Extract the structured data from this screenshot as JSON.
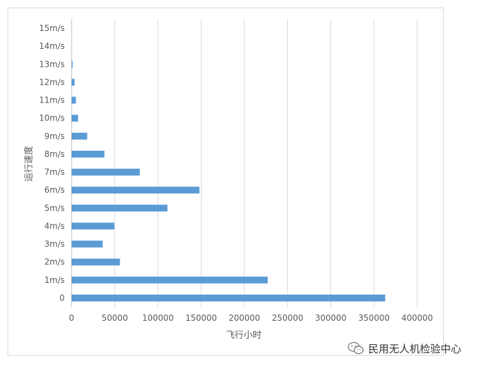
{
  "chart_data": {
    "type": "bar",
    "orientation": "horizontal",
    "categories": [
      "0",
      "1m/s",
      "2m/s",
      "3m/s",
      "4m/s",
      "5m/s",
      "6m/s",
      "7m/s",
      "8m/s",
      "9m/s",
      "10m/s",
      "11m/s",
      "12m/s",
      "13m/s",
      "14m/s",
      "15m/s"
    ],
    "values": [
      363000,
      227000,
      56000,
      36000,
      49500,
      111000,
      148000,
      79000,
      38000,
      18000,
      7500,
      5000,
      3500,
      1200,
      0,
      0
    ],
    "xlabel": "飞行小时",
    "ylabel": "运行速度",
    "xlim": [
      0,
      400000
    ],
    "xticks": [
      "0",
      "50000",
      "100000",
      "150000",
      "200000",
      "250000",
      "300000",
      "350000",
      "400000"
    ],
    "xtick_values": [
      0,
      50000,
      100000,
      150000,
      200000,
      250000,
      300000,
      350000,
      400000
    ],
    "grid": "vertical",
    "bar_color": "#5B9BD5",
    "grid_color": "#d9d9d9"
  },
  "watermark": {
    "text": "民用无人机检验中心",
    "icon": "wechat-icon"
  }
}
